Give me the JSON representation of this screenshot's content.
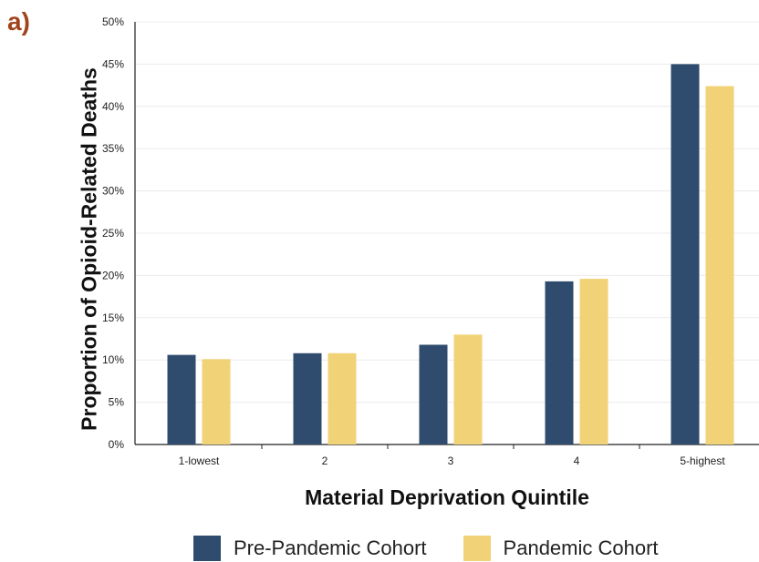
{
  "panel_label": "a)",
  "chart_data": {
    "type": "bar",
    "title": "",
    "xlabel": "Material Deprivation Quintile",
    "ylabel": "Proportion of Opioid-Related Deaths",
    "categories": [
      "1-lowest",
      "2",
      "3",
      "4",
      "5-highest"
    ],
    "series": [
      {
        "name": "Pre-Pandemic Cohort",
        "values": [
          10.6,
          10.8,
          11.8,
          19.3,
          45.0
        ],
        "color": "#2f4b6e"
      },
      {
        "name": "Pandemic Cohort",
        "values": [
          10.1,
          10.8,
          13.0,
          19.6,
          42.4
        ],
        "color": "#f1d277"
      }
    ],
    "ylim": [
      0,
      50
    ],
    "yticks": [
      "0%",
      "5%",
      "10%",
      "15%",
      "20%",
      "25%",
      "30%",
      "35%",
      "40%",
      "45%",
      "50%"
    ],
    "grid": true,
    "legend_position": "bottom"
  }
}
